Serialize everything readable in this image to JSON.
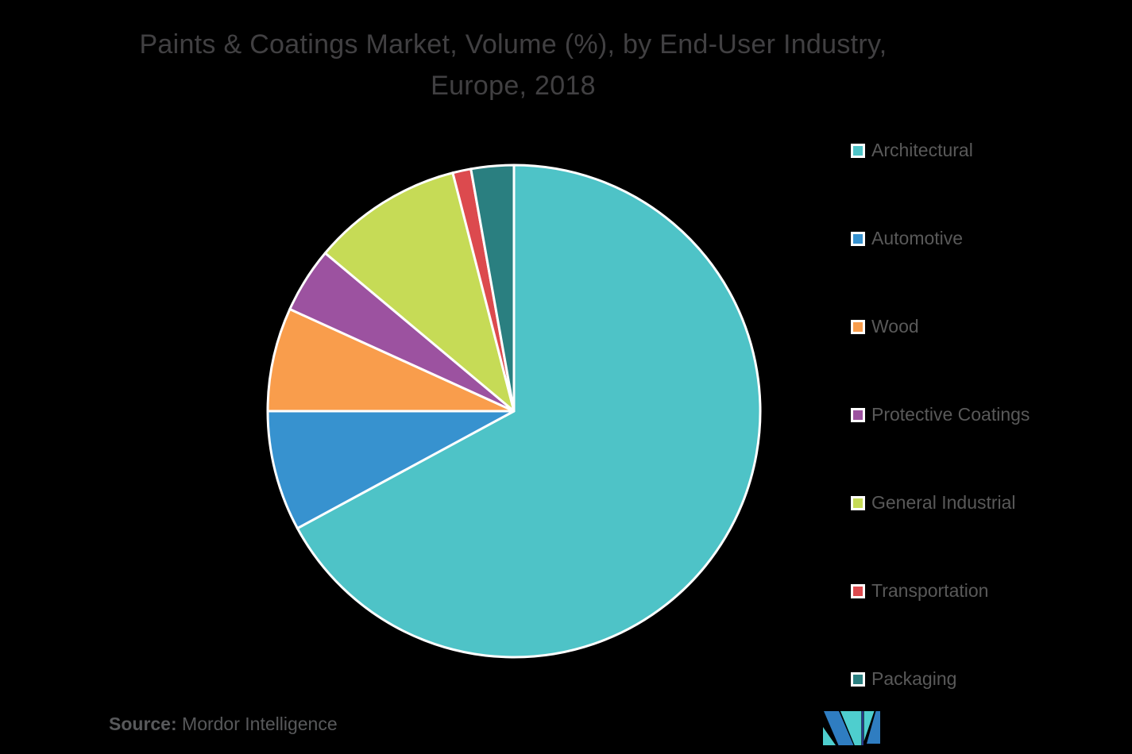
{
  "chart_data": {
    "type": "pie",
    "title": "Paints & Coatings Market, Volume (%), by End-User Industry, Europe, 2018",
    "title_lines": [
      "Paints & Coatings Market, Volume (%), by End-User Industry,",
      "Europe, 2018"
    ],
    "unit": "%",
    "labels": [
      "Architectural",
      "Automotive",
      "Wood",
      "Protective Coatings",
      "General Industrial",
      "Transportation",
      "Packaging"
    ],
    "values": [
      67.1,
      7.9,
      6.8,
      4.3,
      9.9,
      1.2,
      2.8
    ],
    "colors": [
      "#4EC3C7",
      "#3792CF",
      "#F99D4C",
      "#9C52A0",
      "#C6DB56",
      "#DC4A4E",
      "#2A7F80"
    ],
    "legend_position": "right",
    "start_angle_deg": 0,
    "direction": "clockwise",
    "slice_border_color": "#FFFFFF",
    "background_color": "#000000",
    "title_color": "#414042",
    "legend_text_color": "#595959"
  },
  "footer": {
    "source_label": "Source:",
    "source_text": "Mordor Intelligence"
  },
  "logo": {
    "name": "Mordor Intelligence logo",
    "blue": "#2F7DC1",
    "teal": "#4ECECE",
    "navy": "#2B3990"
  }
}
